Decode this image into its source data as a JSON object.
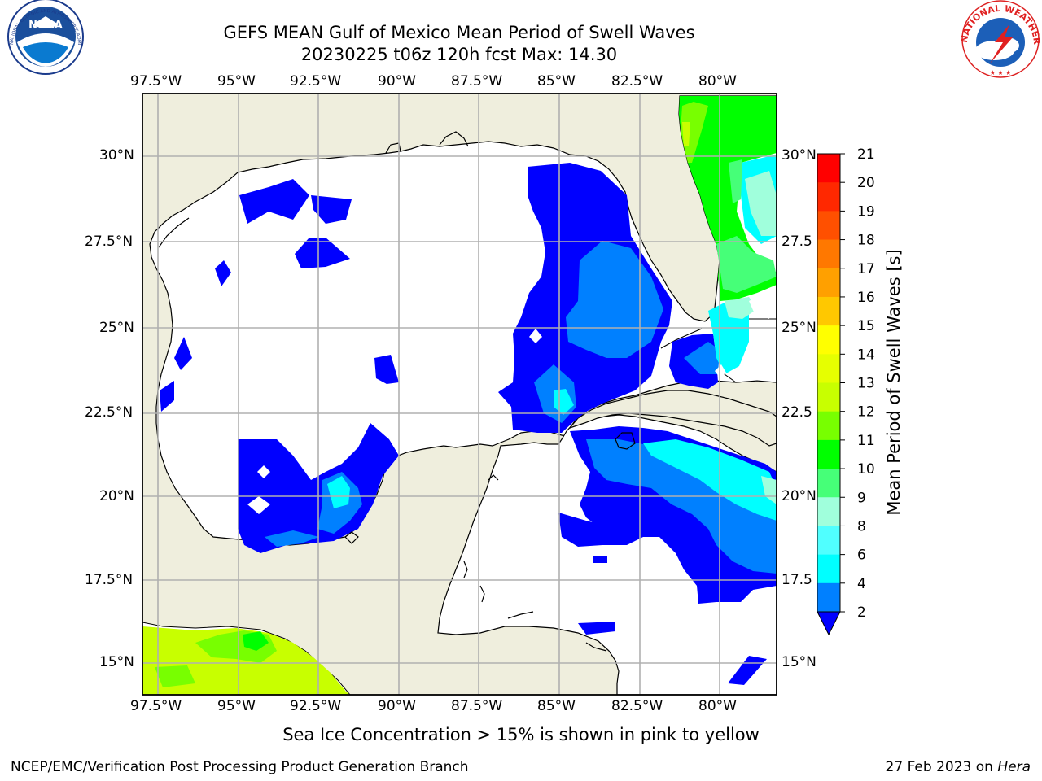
{
  "header": {
    "title_line1": "GEFS MEAN Gulf of Mexico Mean Period of Swell Waves",
    "title_line2": "20230225 t06z 120h fcst   Max: 14.30"
  },
  "logos": {
    "noara": {
      "text": "NOAA",
      "ring_text": "NATIONAL OCEANIC AND ATMOSPHERIC ADMINISTRATION · U.S. DEPARTMENT OF COMMERCE"
    },
    "nws": {
      "ring_text": "NATIONAL WEATHER SERVICE"
    }
  },
  "map": {
    "lon_labels": [
      "97.5°W",
      "95°W",
      "92.5°W",
      "90°W",
      "87.5°W",
      "85°W",
      "82.5°W",
      "80°W"
    ],
    "lat_labels_left": [
      "30°N",
      "27.5°N",
      "25°N",
      "22.5°N",
      "20°N",
      "17.5°N",
      "15°N"
    ],
    "lat_labels_right": [
      "30°N",
      "27.5",
      "25°N",
      "22.5",
      "20°N",
      "17.5",
      "15°N"
    ],
    "colors": {
      "land": "#efeedd",
      "ocean": "#ffffff",
      "grid": "#b0b0b0",
      "coast": "#000000"
    }
  },
  "colorbar": {
    "label": "Mean Period of Swell Waves [s]",
    "ticks": [
      "21",
      "20",
      "19",
      "18",
      "17",
      "16",
      "15",
      "14",
      "13",
      "12",
      "11",
      "10",
      "9",
      "8",
      "6",
      "4",
      "2"
    ],
    "colors": [
      "#ff0000",
      "#ff2800",
      "#ff5000",
      "#ff7800",
      "#ffa000",
      "#ffc800",
      "#ffff00",
      "#e6ff00",
      "#c8ff00",
      "#78ff00",
      "#00ff00",
      "#46ff78",
      "#a0ffdc",
      "#50ffff",
      "#00ffff",
      "#0080ff",
      "#0000ff"
    ]
  },
  "note": "Sea Ice Concentration > 15% is shown in pink to yellow",
  "footer": {
    "left": "NCEP/EMC/Verification Post Processing Product Generation Branch",
    "right_date": "27 Feb 2023 on ",
    "right_host": "Hera"
  }
}
